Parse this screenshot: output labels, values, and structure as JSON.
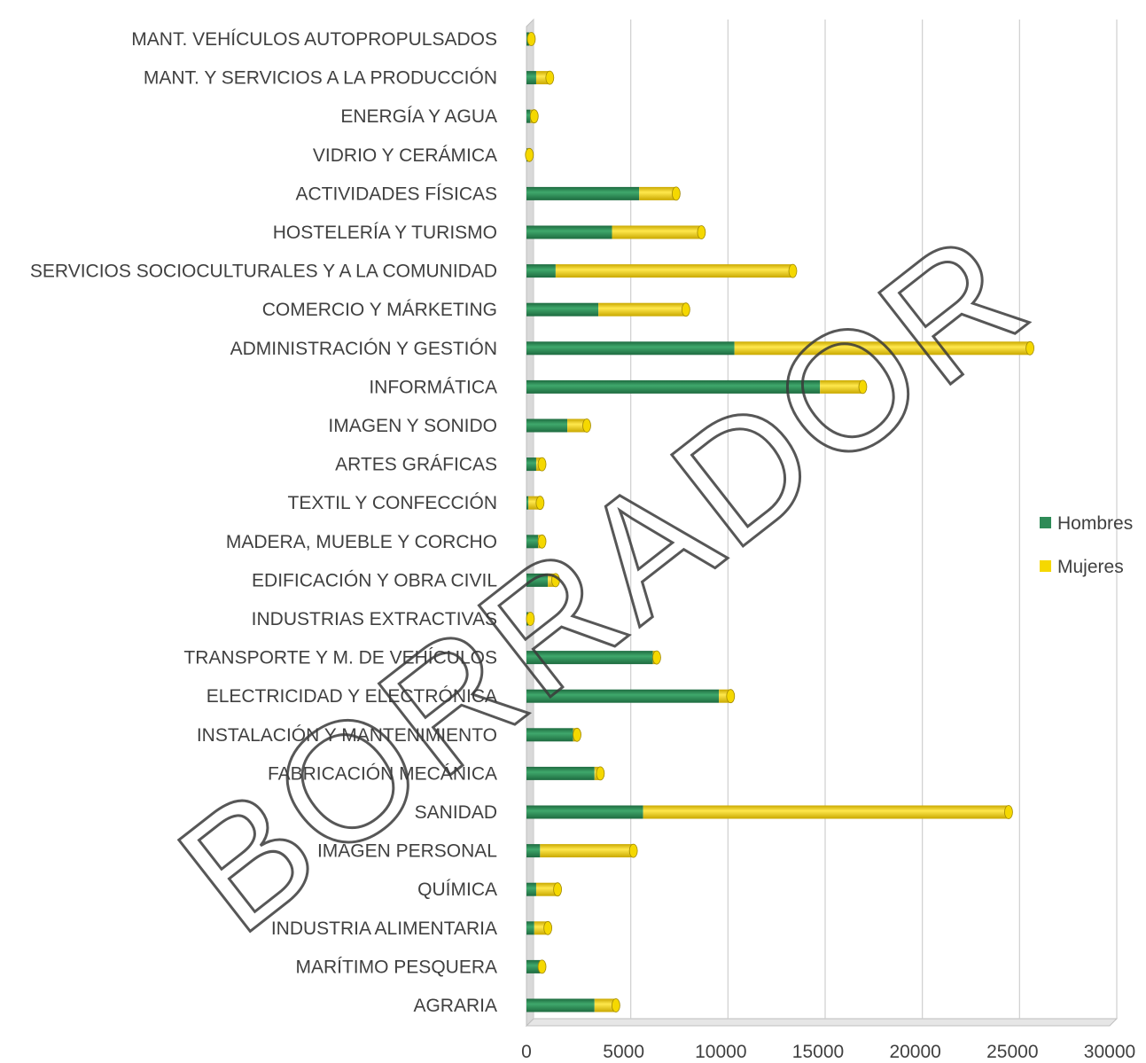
{
  "chart_data": {
    "type": "bar",
    "orientation": "horizontal",
    "stacked": true,
    "categories": [
      "MANT. VEHÍCULOS AUTOPROPULSADOS",
      "MANT. Y SERVICIOS A LA PRODUCCIÓN",
      "ENERGÍA Y AGUA",
      "VIDRIO Y CERÁMICA",
      "ACTIVIDADES FÍSICAS",
      "HOSTELERÍA Y TURISMO",
      "SERVICIOS SOCIOCULTURALES Y A LA COMUNIDAD",
      "COMERCIO Y MÁRKETING",
      "ADMINISTRACIÓN Y GESTIÓN",
      "INFORMÁTICA",
      "IMAGEN Y SONIDO",
      "ARTES GRÁFICAS",
      "TEXTIL Y CONFECCIÓN",
      "MADERA, MUEBLE Y CORCHO",
      "EDIFICACIÓN Y OBRA CIVIL",
      "INDUSTRIAS EXTRACTIVAS",
      "TRANSPORTE Y M. DE VEHÍCULOS",
      "ELECTRICIDAD Y ELECTRÓNICA",
      "INSTALACIÓN Y MANTENIMIENTO",
      "FABRICACIÓN MECÁNICA",
      "SANIDAD",
      "IMAGEN PERSONAL",
      "QUÍMICA",
      "INDUSTRIA ALIMENTARIA",
      "MARÍTIMO PESQUERA",
      "AGRARIA"
    ],
    "series": [
      {
        "name": "Hombres",
        "color": "#2e8b57",
        "values": [
          150,
          500,
          200,
          50,
          5800,
          4400,
          1500,
          3700,
          10700,
          15100,
          2100,
          500,
          100,
          600,
          1100,
          100,
          6500,
          9900,
          2400,
          3500,
          6000,
          700,
          500,
          400,
          700,
          3500
        ]
      },
      {
        "name": "Mujeres",
        "color": "#f5d800",
        "values": [
          100,
          700,
          200,
          100,
          1900,
          4600,
          12200,
          4500,
          15200,
          2200,
          1000,
          300,
          600,
          200,
          400,
          100,
          200,
          600,
          200,
          300,
          18800,
          4800,
          1100,
          700,
          100,
          1100
        ]
      }
    ],
    "xlim": [
      0,
      30000
    ],
    "xticks": [
      0,
      5000,
      10000,
      15000,
      20000,
      25000,
      30000
    ],
    "grid": true,
    "legend_position": "right"
  },
  "watermark": "BORRADOR"
}
